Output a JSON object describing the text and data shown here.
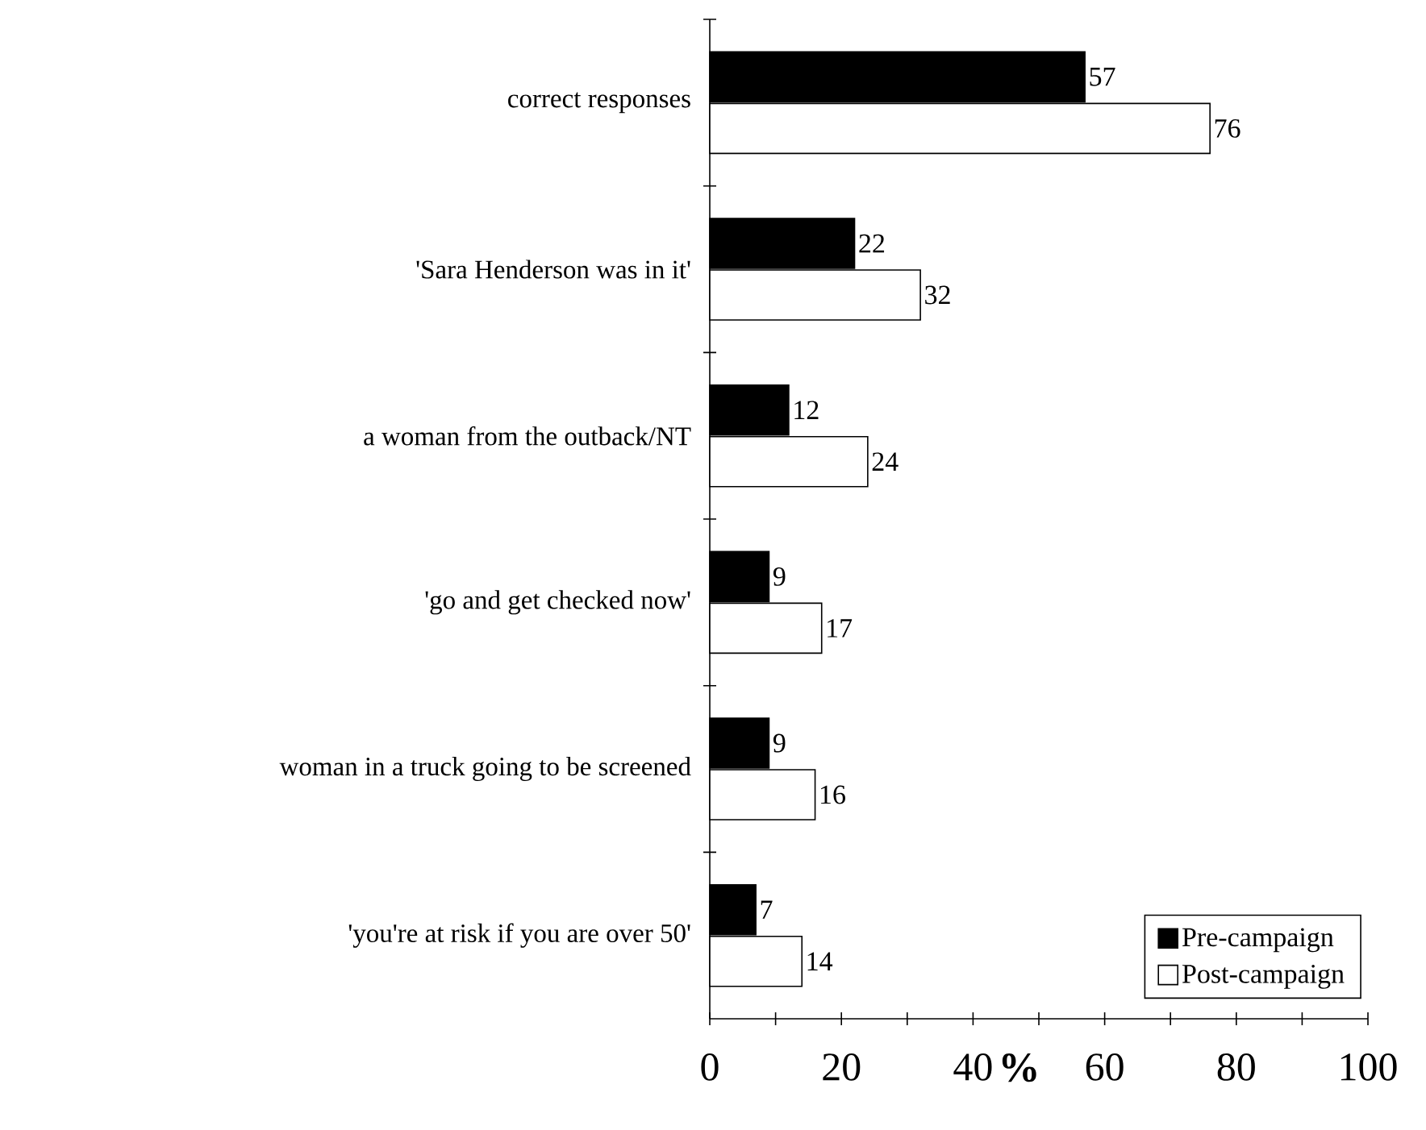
{
  "chart_data": {
    "type": "bar",
    "orientation": "horizontal",
    "xlabel": "%",
    "categories": [
      "correct responses",
      "'Sara Henderson was in it'",
      "a woman from the outback/NT",
      "'go and get checked now'",
      "woman in a truck going to be screened",
      "'you're at risk if you are over 50'"
    ],
    "series": [
      {
        "name": "Pre-campaign",
        "color": "#000000",
        "values": [
          57,
          22,
          12,
          9,
          9,
          7
        ]
      },
      {
        "name": "Post-campaign",
        "color": "#ffffff",
        "values": [
          76,
          32,
          24,
          17,
          16,
          14
        ]
      }
    ],
    "xlim": [
      0,
      100
    ],
    "xticks": [
      0,
      20,
      40,
      60,
      80,
      100
    ],
    "data_labels": true,
    "legend": "bottom right",
    "grid": false
  }
}
